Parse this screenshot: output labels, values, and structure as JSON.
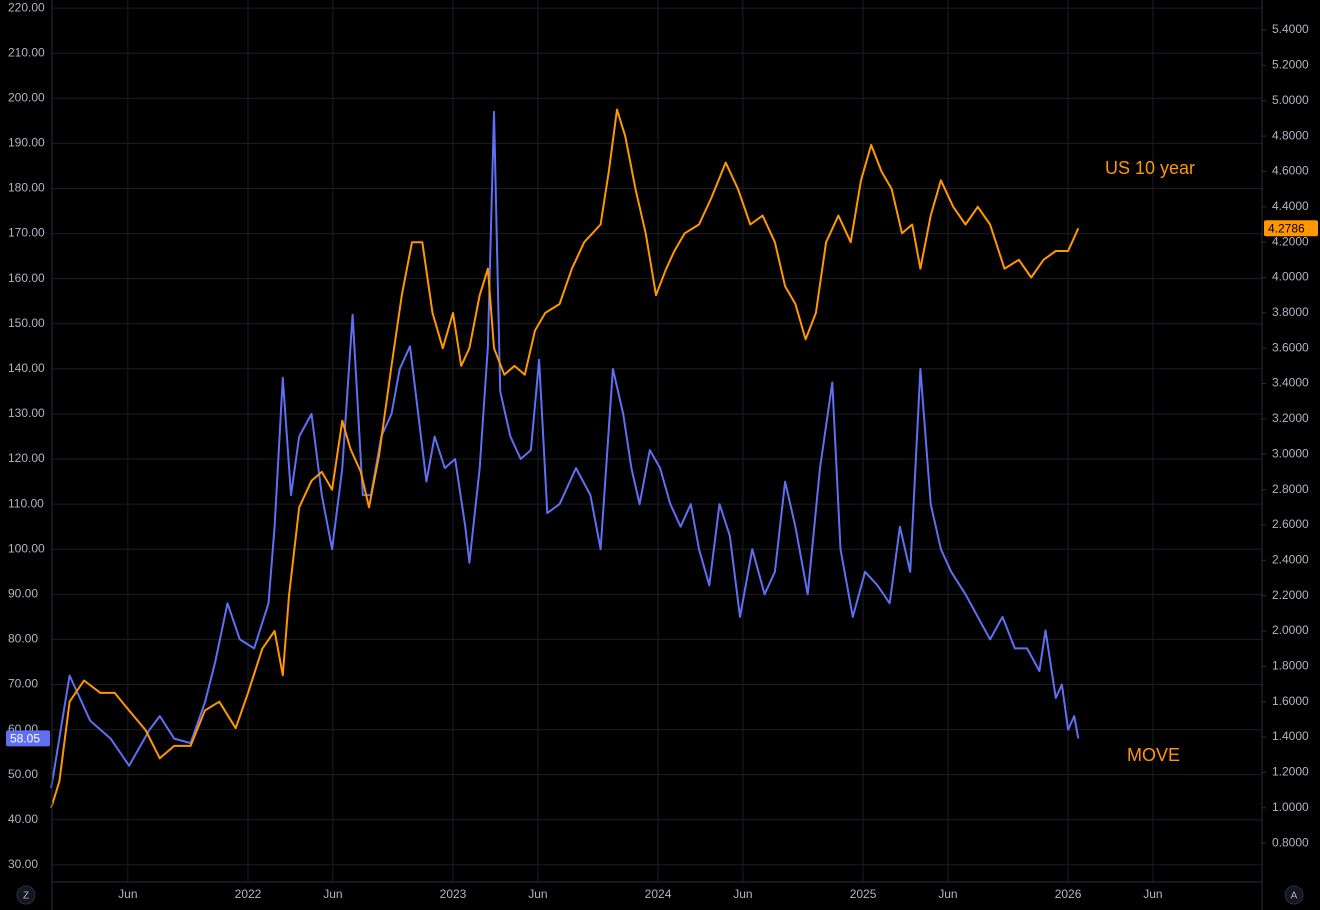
{
  "chart_data": {
    "type": "line",
    "xlim": [
      2021.044,
      2026.946
    ],
    "xticks": [
      {
        "value": 2021.414,
        "label": "Jun"
      },
      {
        "value": 2022,
        "label": "2022"
      },
      {
        "value": 2022.414,
        "label": "Jun"
      },
      {
        "value": 2023,
        "label": "2023"
      },
      {
        "value": 2023.414,
        "label": "Jun"
      },
      {
        "value": 2024,
        "label": "2024"
      },
      {
        "value": 2024.414,
        "label": "Jun"
      },
      {
        "value": 2025,
        "label": "2025"
      },
      {
        "value": 2025.414,
        "label": "Jun"
      },
      {
        "value": 2026,
        "label": "2026"
      },
      {
        "value": 2026.414,
        "label": "Jun"
      }
    ],
    "ylim": [
      26.2,
      221.8
    ],
    "yticks": [
      {
        "value": 30,
        "label": "30.00"
      },
      {
        "value": 40,
        "label": "40.00"
      },
      {
        "value": 50,
        "label": "50.00"
      },
      {
        "value": 60,
        "label": "60.00"
      },
      {
        "value": 70,
        "label": "70.00"
      },
      {
        "value": 80,
        "label": "80.00"
      },
      {
        "value": 90,
        "label": "90.00"
      },
      {
        "value": 100,
        "label": "100.00"
      },
      {
        "value": 110,
        "label": "110.00"
      },
      {
        "value": 120,
        "label": "120.00"
      },
      {
        "value": 130,
        "label": "130.00"
      },
      {
        "value": 140,
        "label": "140.00"
      },
      {
        "value": 150,
        "label": "150.00"
      },
      {
        "value": 160,
        "label": "160.00"
      },
      {
        "value": 170,
        "label": "170.00"
      },
      {
        "value": 180,
        "label": "180.00"
      },
      {
        "value": 190,
        "label": "190.00"
      },
      {
        "value": 200,
        "label": "200.00"
      },
      {
        "value": 210,
        "label": "210.00"
      },
      {
        "value": 220,
        "label": "220.00"
      }
    ],
    "y2lim": [
      0.58,
      5.57
    ],
    "y2ticks": [
      {
        "value": 0.8,
        "label": "0.8000"
      },
      {
        "value": 1.0,
        "label": "1.0000"
      },
      {
        "value": 1.2,
        "label": "1.2000"
      },
      {
        "value": 1.4,
        "label": "1.4000"
      },
      {
        "value": 1.6,
        "label": "1.6000"
      },
      {
        "value": 1.8,
        "label": "1.8000"
      },
      {
        "value": 2.0,
        "label": "2.0000"
      },
      {
        "value": 2.2,
        "label": "2.2000"
      },
      {
        "value": 2.4,
        "label": "2.4000"
      },
      {
        "value": 2.6,
        "label": "2.6000"
      },
      {
        "value": 2.8,
        "label": "2.8000"
      },
      {
        "value": 3.0,
        "label": "3.0000"
      },
      {
        "value": 3.2,
        "label": "3.2000"
      },
      {
        "value": 3.4,
        "label": "3.4000"
      },
      {
        "value": 3.6,
        "label": "3.6000"
      },
      {
        "value": 3.8,
        "label": "3.8000"
      },
      {
        "value": 4.0,
        "label": "4.0000"
      },
      {
        "value": 4.2,
        "label": "4.2000"
      },
      {
        "value": 4.4,
        "label": "4.4000"
      },
      {
        "value": 4.6,
        "label": "4.6000"
      },
      {
        "value": 4.8,
        "label": "4.8000"
      },
      {
        "value": 5.0,
        "label": "5.0000"
      },
      {
        "value": 5.2,
        "label": "5.2000"
      },
      {
        "value": 5.4,
        "label": "5.4000"
      }
    ],
    "grid": true,
    "series": [
      {
        "name": "MOVE",
        "color": "#5f6ff2",
        "label_color": "#ff9800",
        "x": [
          2021.04,
          2021.13,
          2021.23,
          2021.33,
          2021.42,
          2021.52,
          2021.57,
          2021.64,
          2021.72,
          2021.79,
          2021.84,
          2021.9,
          2021.96,
          2022.03,
          2022.1,
          2022.13,
          2022.17,
          2022.21,
          2022.25,
          2022.31,
          2022.36,
          2022.41,
          2022.46,
          2022.51,
          2022.56,
          2022.6,
          2022.65,
          2022.7,
          2022.74,
          2022.79,
          2022.83,
          2022.87,
          2022.91,
          2022.96,
          2023.01,
          2023.06,
          2023.08,
          2023.13,
          2023.17,
          2023.2,
          2023.23,
          2023.28,
          2023.33,
          2023.38,
          2023.42,
          2023.46,
          2023.52,
          2023.6,
          2023.67,
          2023.72,
          2023.78,
          2023.83,
          2023.87,
          2023.91,
          2023.96,
          2024.01,
          2024.06,
          2024.11,
          2024.16,
          2024.2,
          2024.25,
          2024.3,
          2024.35,
          2024.4,
          2024.46,
          2024.52,
          2024.57,
          2024.62,
          2024.67,
          2024.73,
          2024.79,
          2024.85,
          2024.89,
          2024.95,
          2025.01,
          2025.07,
          2025.13,
          2025.18,
          2025.23,
          2025.28,
          2025.33,
          2025.38,
          2025.43,
          2025.5,
          2025.56,
          2025.62,
          2025.68,
          2025.74,
          2025.8,
          2025.86,
          2025.89,
          2025.94,
          2025.97,
          2026.0,
          2026.03,
          2026.05
        ],
        "values": [
          47,
          72,
          62,
          58,
          52,
          60,
          63,
          58,
          57,
          66,
          75,
          88,
          80,
          78,
          88,
          105,
          138,
          112,
          125,
          130,
          112,
          100,
          118,
          152,
          112,
          112,
          125,
          130,
          140,
          145,
          130,
          115,
          125,
          118,
          120,
          105,
          97,
          118,
          145,
          197,
          135,
          125,
          120,
          122,
          142,
          108,
          110,
          118,
          112,
          100,
          140,
          130,
          118,
          110,
          122,
          118,
          110,
          105,
          110,
          100,
          92,
          110,
          103,
          85,
          100,
          90,
          95,
          115,
          105,
          90,
          118,
          137,
          100,
          85,
          95,
          92,
          88,
          105,
          95,
          140,
          110,
          100,
          95,
          90,
          85,
          80,
          85,
          78,
          78,
          73,
          82,
          67,
          70,
          60,
          63,
          58.05
        ]
      },
      {
        "name": "US 10 year",
        "color": "#ff9800",
        "label_color": "#ff9800",
        "axis": "y2",
        "x": [
          2021.04,
          2021.08,
          2021.13,
          2021.2,
          2021.28,
          2021.35,
          2021.42,
          2021.5,
          2021.57,
          2021.64,
          2021.72,
          2021.79,
          2021.86,
          2021.94,
          2022.0,
          2022.07,
          2022.13,
          2022.17,
          2022.2,
          2022.25,
          2022.31,
          2022.36,
          2022.41,
          2022.46,
          2022.5,
          2022.55,
          2022.59,
          2022.64,
          2022.7,
          2022.75,
          2022.8,
          2022.85,
          2022.9,
          2022.95,
          2023.0,
          2023.04,
          2023.08,
          2023.13,
          2023.17,
          2023.2,
          2023.25,
          2023.3,
          2023.35,
          2023.4,
          2023.45,
          2023.52,
          2023.58,
          2023.64,
          2023.72,
          2023.76,
          2023.8,
          2023.84,
          2023.89,
          2023.94,
          2023.99,
          2024.04,
          2024.08,
          2024.13,
          2024.2,
          2024.26,
          2024.33,
          2024.39,
          2024.45,
          2024.51,
          2024.57,
          2024.62,
          2024.67,
          2024.72,
          2024.77,
          2024.82,
          2024.88,
          2024.94,
          2024.99,
          2025.04,
          2025.09,
          2025.14,
          2025.19,
          2025.24,
          2025.28,
          2025.33,
          2025.38,
          2025.44,
          2025.5,
          2025.56,
          2025.62,
          2025.69,
          2025.76,
          2025.82,
          2025.88,
          2025.94,
          2026.0,
          2026.05
        ],
        "values": [
          1.0,
          1.15,
          1.6,
          1.72,
          1.65,
          1.65,
          1.55,
          1.44,
          1.28,
          1.35,
          1.35,
          1.55,
          1.6,
          1.45,
          1.65,
          1.9,
          2.0,
          1.75,
          2.2,
          2.7,
          2.85,
          2.9,
          2.8,
          3.19,
          3.03,
          2.9,
          2.7,
          3.0,
          3.5,
          3.9,
          4.2,
          4.2,
          3.8,
          3.6,
          3.8,
          3.5,
          3.6,
          3.9,
          4.05,
          3.6,
          3.45,
          3.5,
          3.45,
          3.7,
          3.8,
          3.85,
          4.05,
          4.2,
          4.3,
          4.6,
          4.95,
          4.8,
          4.5,
          4.25,
          3.9,
          4.05,
          4.15,
          4.25,
          4.3,
          4.45,
          4.65,
          4.5,
          4.3,
          4.35,
          4.2,
          3.95,
          3.85,
          3.65,
          3.8,
          4.2,
          4.35,
          4.2,
          4.55,
          4.75,
          4.6,
          4.5,
          4.25,
          4.3,
          4.05,
          4.35,
          4.55,
          4.4,
          4.3,
          4.4,
          4.3,
          4.05,
          4.1,
          4.0,
          4.1,
          4.15,
          4.15,
          4.2786
        ]
      }
    ]
  },
  "ui": {
    "left_button": "Z",
    "right_button": "A"
  }
}
